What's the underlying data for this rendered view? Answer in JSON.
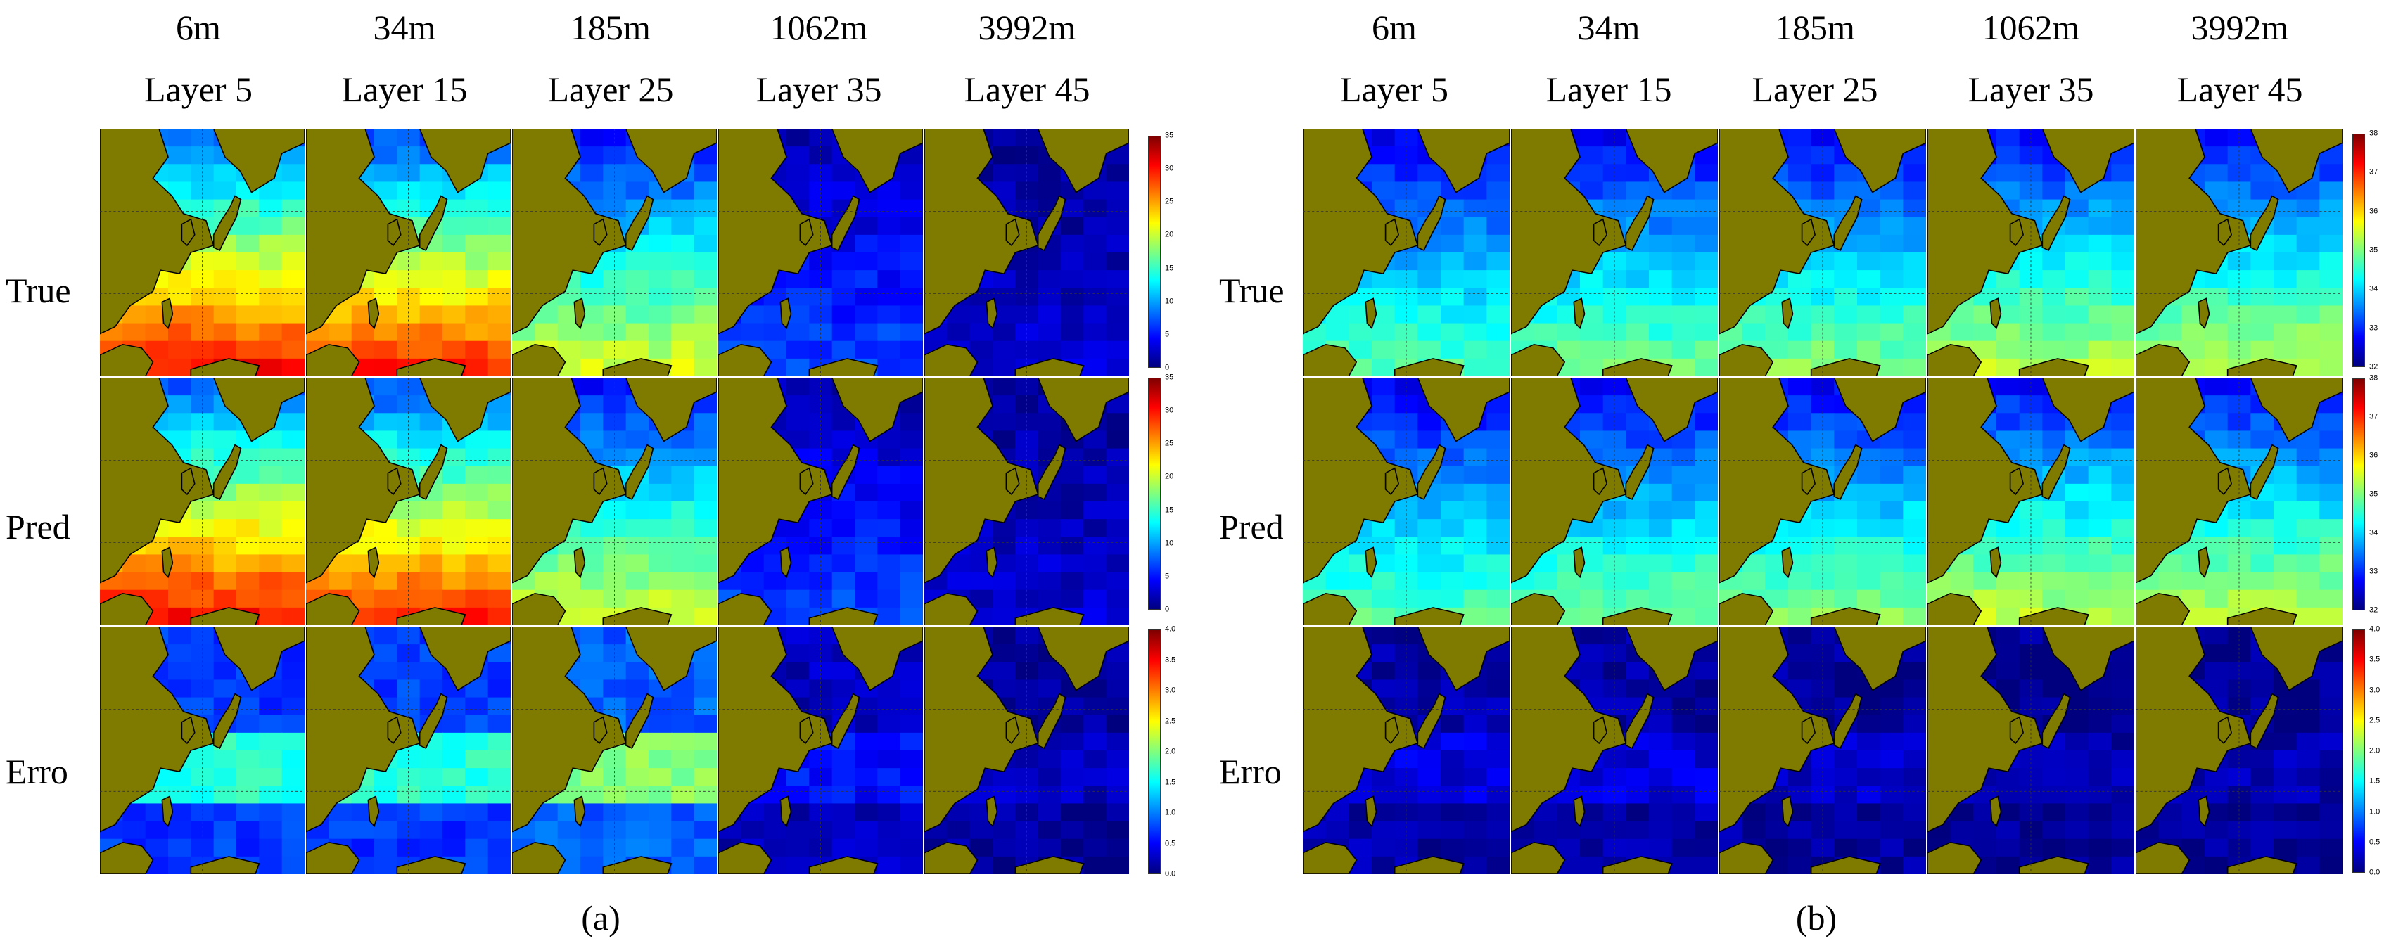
{
  "columns": [
    {
      "depth": "6m",
      "layer": "Layer 5"
    },
    {
      "depth": "34m",
      "layer": "Layer 15"
    },
    {
      "depth": "185m",
      "layer": "Layer 25"
    },
    {
      "depth": "1062m",
      "layer": "Layer 35"
    },
    {
      "depth": "3992m",
      "layer": "Layer 45"
    }
  ],
  "rows": [
    "True",
    "Pred",
    "Erro"
  ],
  "panels": [
    {
      "label": "(a)",
      "colorbars": [
        {
          "row": "True",
          "min": 0,
          "max": 35,
          "ticks": [
            "35",
            "30",
            "25",
            "20",
            "15",
            "10",
            "5",
            "0"
          ],
          "tick_values": [
            35,
            30,
            25,
            20,
            15,
            10,
            5,
            0
          ]
        },
        {
          "row": "Pred",
          "min": 0,
          "max": 35,
          "ticks": [
            "35",
            "30",
            "25",
            "20",
            "15",
            "10",
            "5",
            "0"
          ],
          "tick_values": [
            35,
            30,
            25,
            20,
            15,
            10,
            5,
            0
          ]
        },
        {
          "row": "Erro",
          "min": 0,
          "max": 4,
          "ticks": [
            "4.0",
            "3.5",
            "3.0",
            "2.5",
            "2.0",
            "1.5",
            "1.0",
            "0.5",
            "0.0"
          ],
          "tick_values": [
            4.0,
            3.5,
            3.0,
            2.5,
            2.0,
            1.5,
            1.0,
            0.5,
            0.0
          ]
        }
      ],
      "ocean_levels": {
        "True": [
          0.62,
          0.6,
          0.42,
          0.14,
          0.06
        ],
        "Pred": [
          0.62,
          0.6,
          0.42,
          0.14,
          0.06
        ],
        "Erro": [
          0.18,
          0.18,
          0.22,
          0.06,
          0.03
        ]
      }
    },
    {
      "label": "(b)",
      "colorbars": [
        {
          "row": "True",
          "min": 32,
          "max": 38,
          "ticks": [
            "38",
            "37",
            "36",
            "35",
            "34",
            "33",
            "32"
          ],
          "tick_values": [
            38,
            37,
            36,
            35,
            34,
            33,
            32
          ]
        },
        {
          "row": "Pred",
          "min": 32,
          "max": 38,
          "ticks": [
            "38",
            "37",
            "36",
            "35",
            "34",
            "33",
            "32"
          ],
          "tick_values": [
            38,
            37,
            36,
            35,
            34,
            33,
            32
          ]
        },
        {
          "row": "Erro",
          "min": 0,
          "max": 4,
          "ticks": [
            "4.0",
            "3.5",
            "3.0",
            "2.5",
            "2.0",
            "1.5",
            "1.0",
            "0.5",
            "0.0"
          ],
          "tick_values": [
            4.0,
            3.5,
            3.0,
            2.5,
            2.0,
            1.5,
            1.0,
            0.5,
            0.0
          ]
        }
      ],
      "ocean_levels": {
        "True": [
          0.33,
          0.35,
          0.36,
          0.4,
          0.4
        ],
        "Pred": [
          0.33,
          0.35,
          0.36,
          0.4,
          0.4
        ],
        "Erro": [
          0.04,
          0.04,
          0.03,
          0.02,
          0.02
        ]
      }
    }
  ],
  "colors": {
    "land": "#7f7a00",
    "jet": [
      "#00007f",
      "#0000ff",
      "#007fff",
      "#00ffff",
      "#7fff7f",
      "#ffff00",
      "#ff7f00",
      "#ff0000",
      "#7f0000"
    ]
  }
}
